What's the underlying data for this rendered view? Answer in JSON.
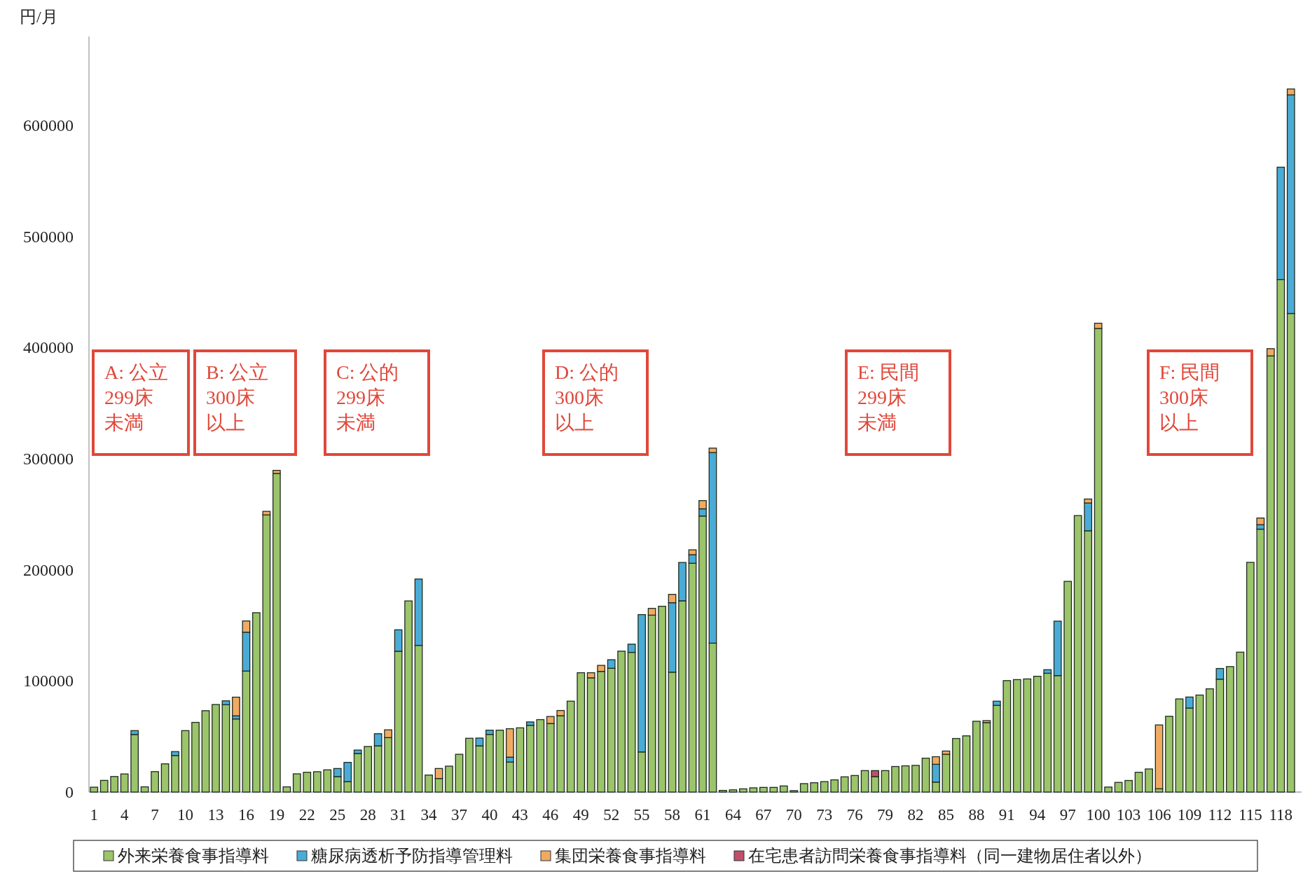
{
  "chart_data": {
    "type": "bar",
    "stacked": true,
    "ylabel": "円/月",
    "legend": "bottom",
    "ylim": [
      0,
      680000
    ],
    "yticks": [
      0,
      100000,
      200000,
      300000,
      400000,
      500000,
      600000
    ],
    "categories": [
      "1",
      null,
      null,
      "4",
      null,
      null,
      "7",
      null,
      null,
      "10",
      null,
      null,
      "13",
      null,
      null,
      "16",
      null,
      null,
      "19",
      null,
      null,
      "22",
      null,
      null,
      "25",
      null,
      null,
      "28",
      null,
      null,
      "31",
      null,
      null,
      "34",
      null,
      null,
      "37",
      null,
      null,
      "40",
      null,
      null,
      "43",
      null,
      null,
      "46",
      null,
      null,
      "49",
      null,
      null,
      "52",
      null,
      null,
      "55",
      null,
      null,
      "58",
      null,
      null,
      "61",
      null,
      null,
      "64",
      null,
      null,
      "67",
      null,
      null,
      "70",
      null,
      null,
      "73",
      null,
      null,
      "76",
      null,
      null,
      "79",
      null,
      null,
      "82",
      null,
      null,
      "85",
      null,
      null,
      "88",
      null,
      null,
      "91",
      null,
      null,
      "94",
      null,
      null,
      "97",
      null,
      null,
      "100",
      null,
      null,
      "103",
      null,
      null,
      "106",
      null,
      null,
      "109",
      null,
      null,
      "112",
      null,
      null,
      "115",
      null,
      null,
      "118",
      null
    ],
    "series": [
      {
        "name": "外来栄養食事指導料",
        "color": "#9bc46b",
        "values": [
          4400,
          10500,
          14000,
          16300,
          51800,
          4700,
          18400,
          25400,
          32900,
          55300,
          62700,
          73200,
          78800,
          78600,
          65800,
          108900,
          161400,
          249400,
          286700,
          4700,
          16400,
          17800,
          18300,
          20000,
          13900,
          9400,
          34700,
          41000,
          41600,
          49000,
          126700,
          172000,
          132000,
          15300,
          12200,
          23300,
          34000,
          48400,
          41600,
          51900,
          55700,
          27000,
          57800,
          60100,
          65200,
          61700,
          68700,
          81800,
          107400,
          102800,
          108600,
          111400,
          126800,
          125700,
          36100,
          159200,
          167200,
          107900,
          172100,
          205900,
          248400,
          134000,
          1500,
          2000,
          2900,
          3800,
          4200,
          4200,
          5500,
          1300,
          7600,
          8400,
          9400,
          11000,
          13700,
          14900,
          19300,
          13900,
          19300,
          23000,
          23600,
          24000,
          30500,
          9000,
          34000,
          48200,
          50600,
          63700,
          62500,
          78000,
          100300,
          101200,
          101800,
          104200,
          106900,
          104800,
          189600,
          248800,
          235100,
          417200,
          4500,
          8700,
          10400,
          17800,
          20800,
          3000,
          68200,
          83800,
          75600,
          87300,
          92900,
          101600,
          112900,
          125900,
          206700,
          236600,
          392500,
          461100,
          430700
        ]
      },
      {
        "name": "糖尿病透析予防指導管理料",
        "color": "#4aacd6",
        "values": [
          null,
          null,
          null,
          null,
          3500,
          null,
          null,
          null,
          3500,
          null,
          null,
          null,
          null,
          3500,
          2800,
          35000,
          null,
          null,
          null,
          null,
          null,
          null,
          null,
          null,
          7300,
          17300,
          3100,
          null,
          10900,
          null,
          19300,
          null,
          59700,
          null,
          null,
          null,
          null,
          null,
          7000,
          3800,
          null,
          4400,
          null,
          3000,
          null,
          null,
          null,
          null,
          null,
          null,
          null,
          7700,
          null,
          7400,
          123600,
          null,
          null,
          62500,
          34500,
          7700,
          6500,
          171500,
          null,
          null,
          null,
          null,
          null,
          null,
          null,
          null,
          null,
          null,
          null,
          null,
          null,
          null,
          null,
          null,
          null,
          null,
          null,
          null,
          null,
          16000,
          null,
          null,
          null,
          null,
          null,
          3800,
          null,
          null,
          null,
          null,
          3200,
          49000,
          null,
          null,
          25000,
          null,
          null,
          null,
          null,
          null,
          null,
          null,
          null,
          null,
          9900,
          null,
          null,
          9600,
          null,
          null,
          null,
          4000,
          null,
          101200,
          196700
        ]
      },
      {
        "name": "集団栄養食事指導料",
        "color": "#f0aa62",
        "values": [
          null,
          null,
          null,
          null,
          null,
          null,
          null,
          null,
          null,
          null,
          null,
          null,
          null,
          null,
          16800,
          10100,
          null,
          3200,
          2800,
          null,
          null,
          null,
          null,
          null,
          null,
          null,
          null,
          null,
          null,
          7000,
          null,
          null,
          null,
          null,
          9000,
          null,
          null,
          null,
          null,
          null,
          null,
          25600,
          null,
          null,
          null,
          6300,
          4700,
          null,
          null,
          4600,
          5400,
          null,
          null,
          null,
          null,
          6100,
          null,
          7500,
          null,
          4400,
          7400,
          4000,
          null,
          null,
          null,
          null,
          null,
          null,
          null,
          null,
          null,
          null,
          null,
          null,
          null,
          null,
          null,
          null,
          null,
          null,
          null,
          null,
          null,
          6800,
          2900,
          null,
          null,
          null,
          1800,
          null,
          null,
          null,
          null,
          null,
          null,
          null,
          null,
          null,
          3600,
          4700,
          null,
          null,
          null,
          null,
          null,
          57400,
          null,
          null,
          null,
          null,
          null,
          null,
          null,
          null,
          null,
          6000,
          6500,
          null,
          5300
        ]
      },
      {
        "name": "在宅患者訪問栄養食事指導料（同一建物居住者以外）",
        "color": "#c0506a",
        "values": [
          null,
          null,
          null,
          null,
          null,
          null,
          null,
          null,
          null,
          null,
          null,
          null,
          null,
          null,
          null,
          null,
          null,
          null,
          null,
          null,
          null,
          null,
          null,
          null,
          null,
          null,
          null,
          null,
          null,
          null,
          null,
          null,
          null,
          null,
          null,
          null,
          null,
          null,
          null,
          null,
          null,
          null,
          null,
          null,
          null,
          null,
          null,
          null,
          null,
          null,
          null,
          null,
          null,
          null,
          null,
          null,
          null,
          null,
          null,
          null,
          null,
          null,
          null,
          null,
          null,
          null,
          null,
          null,
          null,
          null,
          null,
          null,
          null,
          null,
          null,
          null,
          null,
          5400,
          null,
          null,
          null,
          null,
          null,
          null,
          null,
          null,
          null,
          null,
          null,
          null,
          null,
          null,
          null,
          null,
          null,
          null,
          null,
          null,
          null,
          null,
          null,
          null,
          null,
          null,
          null,
          null,
          null,
          null,
          null,
          null,
          null,
          null,
          null,
          null,
          null,
          null,
          null,
          null,
          null
        ]
      }
    ],
    "annotations": [
      "A: 公立",
      "299床",
      "未満",
      "B: 公立",
      "300床",
      "以上",
      "C: 公的",
      "299床",
      "未満",
      "D: 公的",
      "300床",
      "以上",
      "E: 民間",
      "299床",
      "未満",
      "F: 民間",
      "300床",
      "以上"
    ]
  }
}
